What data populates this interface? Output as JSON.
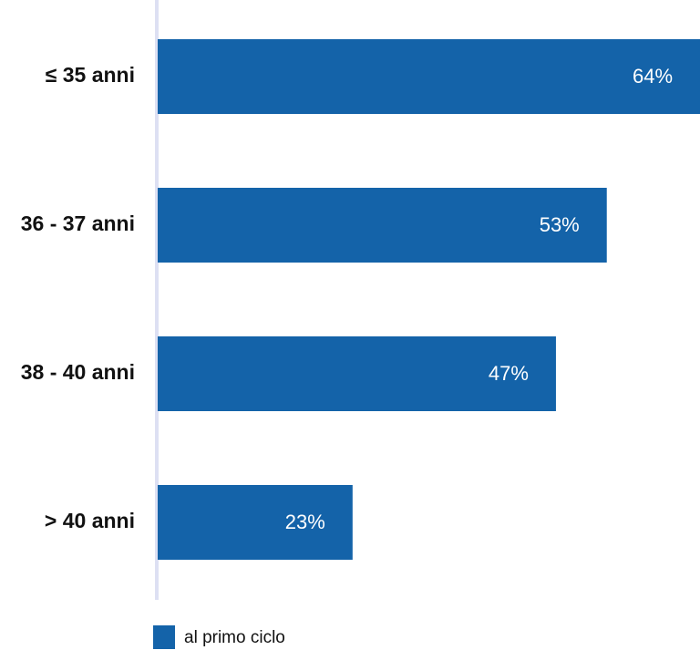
{
  "chart_data": {
    "type": "hbar",
    "categories": [
      "≤ 35 anni",
      "36 - 37 anni",
      "38 - 40 anni",
      "> 40 anni"
    ],
    "series": [
      {
        "name": "al primo ciclo",
        "color": "#1463a9",
        "values": [
          64,
          53,
          47,
          23
        ],
        "value_labels": [
          "64%",
          "53%",
          "47%",
          "23%"
        ]
      }
    ],
    "xlim": [
      0,
      64
    ]
  }
}
